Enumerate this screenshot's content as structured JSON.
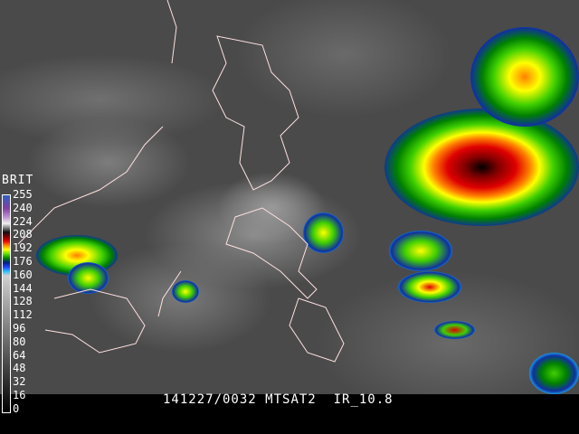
{
  "caption": {
    "date_time": "141227/0032",
    "satellite": "MTSAT2",
    "channel": "IR_10.8"
  },
  "colorbar": {
    "title": "BRIT",
    "labels": [
      "255",
      "240",
      "224",
      "208",
      "192",
      "176",
      "160",
      "144",
      "128",
      "112",
      "96",
      "80",
      "64",
      "48",
      "32",
      "16",
      "0"
    ]
  },
  "colors": {
    "coastline": "#ffe0e0",
    "cold_cloud_core": "#800000",
    "convection_red": "#e00000",
    "convection_green": "#40d000"
  }
}
